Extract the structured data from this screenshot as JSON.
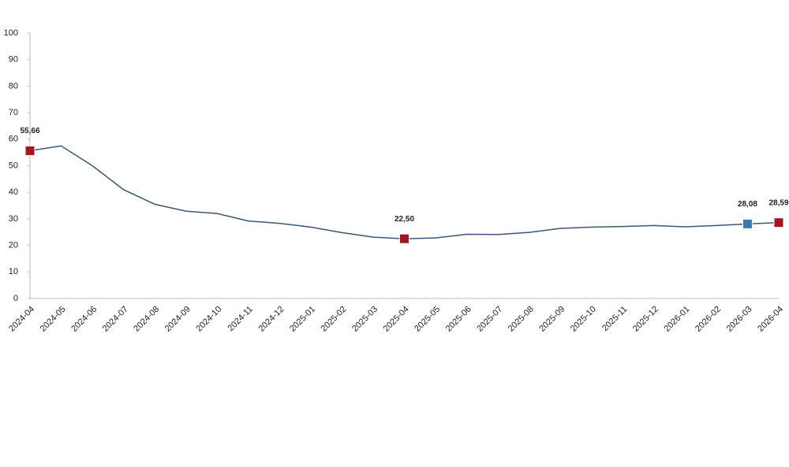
{
  "chart_data": {
    "type": "line",
    "categories": [
      "2024-04",
      "2024-05",
      "2024-06",
      "2024-07",
      "2024-08",
      "2024-09",
      "2024-10",
      "2024-11",
      "2024-12",
      "2025-01",
      "2025-02",
      "2025-03",
      "2025-04",
      "2025-05",
      "2025-06",
      "2025-07",
      "2025-08",
      "2025-09",
      "2025-10",
      "2025-11",
      "2025-12",
      "2026-01",
      "2026-02",
      "2026-03",
      "2026-04"
    ],
    "values": [
      55.66,
      57.5,
      50,
      41,
      35.5,
      32.9,
      32,
      29.2,
      28.3,
      26.9,
      24.8,
      23.1,
      22.5,
      22.8,
      24.2,
      24.1,
      24.9,
      26.4,
      26.9,
      27.1,
      27.5,
      27.0,
      27.5,
      28.08,
      28.59
    ],
    "value_labels": [
      "55,66",
      null,
      null,
      null,
      null,
      null,
      null,
      null,
      null,
      null,
      null,
      null,
      "22,50",
      null,
      null,
      null,
      null,
      null,
      null,
      null,
      null,
      null,
      null,
      "28,08",
      "28,59"
    ],
    "marker_colors": [
      "#a3161f",
      null,
      null,
      null,
      null,
      null,
      null,
      null,
      null,
      null,
      null,
      null,
      "#a3161f",
      null,
      null,
      null,
      null,
      null,
      null,
      null,
      null,
      null,
      null,
      "#3a78b5",
      "#a3161f"
    ],
    "color": "#3b5777",
    "ylim": [
      0,
      100
    ],
    "yticks": [
      0,
      10,
      20,
      30,
      40,
      50,
      60,
      70,
      80,
      90,
      100
    ],
    "grid": false
  }
}
